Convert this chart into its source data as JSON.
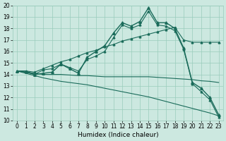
{
  "xlabel": "Humidex (Indice chaleur)",
  "bg_color": "#cce8e0",
  "grid_color": "#99ccbb",
  "line_color": "#1a6b5a",
  "xlim": [
    -0.5,
    23.5
  ],
  "ylim": [
    10,
    20
  ],
  "x_ticks": [
    0,
    1,
    2,
    3,
    4,
    5,
    6,
    7,
    8,
    9,
    10,
    11,
    12,
    13,
    14,
    15,
    16,
    17,
    18,
    19,
    20,
    21,
    22,
    23
  ],
  "y_ticks": [
    10,
    11,
    12,
    13,
    14,
    15,
    16,
    17,
    18,
    19,
    20
  ],
  "series_main_y": [
    14.3,
    14.2,
    14.0,
    14.1,
    14.2,
    14.9,
    14.5,
    14.1,
    15.5,
    16.0,
    16.5,
    17.6,
    18.5,
    18.2,
    18.6,
    19.8,
    18.5,
    18.5,
    18.0,
    16.3,
    13.3,
    12.8,
    12.0,
    10.5
  ],
  "series_zigzag_y": [
    14.3,
    14.3,
    14.0,
    14.4,
    14.5,
    14.9,
    14.6,
    14.3,
    15.3,
    15.6,
    16.0,
    17.2,
    18.3,
    18.0,
    18.3,
    19.5,
    18.3,
    18.2,
    17.8,
    16.2,
    13.2,
    12.5,
    11.8,
    10.3
  ],
  "series_upper_y": [
    14.3,
    14.3,
    14.2,
    14.5,
    14.8,
    15.1,
    15.3,
    15.6,
    15.9,
    16.1,
    16.4,
    16.6,
    16.9,
    17.1,
    17.3,
    17.5,
    17.7,
    17.9,
    18.1,
    17.0,
    16.8,
    16.8,
    16.8,
    16.8
  ],
  "series_flat_y": [
    14.3,
    14.2,
    14.1,
    14.0,
    14.0,
    14.0,
    13.95,
    13.9,
    13.9,
    13.85,
    13.8,
    13.8,
    13.8,
    13.8,
    13.8,
    13.8,
    13.75,
    13.7,
    13.65,
    13.6,
    13.55,
    13.45,
    13.4,
    13.3
  ],
  "series_lower_y": [
    14.3,
    14.1,
    13.9,
    13.7,
    13.55,
    13.4,
    13.3,
    13.2,
    13.1,
    12.95,
    12.8,
    12.65,
    12.5,
    12.35,
    12.2,
    12.05,
    11.85,
    11.65,
    11.45,
    11.25,
    11.05,
    10.85,
    10.65,
    10.4
  ]
}
